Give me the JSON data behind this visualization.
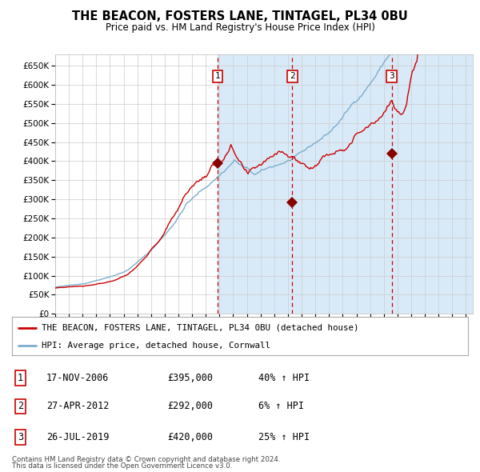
{
  "title": "THE BEACON, FOSTERS LANE, TINTAGEL, PL34 0BU",
  "subtitle": "Price paid vs. HM Land Registry's House Price Index (HPI)",
  "legend_line1": "THE BEACON, FOSTERS LANE, TINTAGEL, PL34 0BU (detached house)",
  "legend_line2": "HPI: Average price, detached house, Cornwall",
  "footer1": "Contains HM Land Registry data © Crown copyright and database right 2024.",
  "footer2": "This data is licensed under the Open Government Licence v3.0.",
  "transactions": [
    {
      "num": 1,
      "date": "17-NOV-2006",
      "price": 395000,
      "pct": "40%",
      "dir": "↑"
    },
    {
      "num": 2,
      "date": "27-APR-2012",
      "price": 292000,
      "pct": "6%",
      "dir": "↑"
    },
    {
      "num": 3,
      "date": "26-JUL-2019",
      "price": 420000,
      "pct": "25%",
      "dir": "↑"
    }
  ],
  "transaction_dates_decimal": [
    2006.88,
    2012.32,
    2019.57
  ],
  "transaction_prices": [
    395000,
    292000,
    420000
  ],
  "red_line_color": "#cc0000",
  "blue_line_color": "#7aadcc",
  "dashed_line_color": "#cc0000",
  "marker_color": "#880000",
  "shaded_color": "#d8eaf8",
  "grid_color": "#cccccc",
  "ylim": [
    0,
    680000
  ],
  "yticks": [
    0,
    50000,
    100000,
    150000,
    200000,
    250000,
    300000,
    350000,
    400000,
    450000,
    500000,
    550000,
    600000,
    650000
  ],
  "xlim_start": 1995.0,
  "xlim_end": 2025.5
}
